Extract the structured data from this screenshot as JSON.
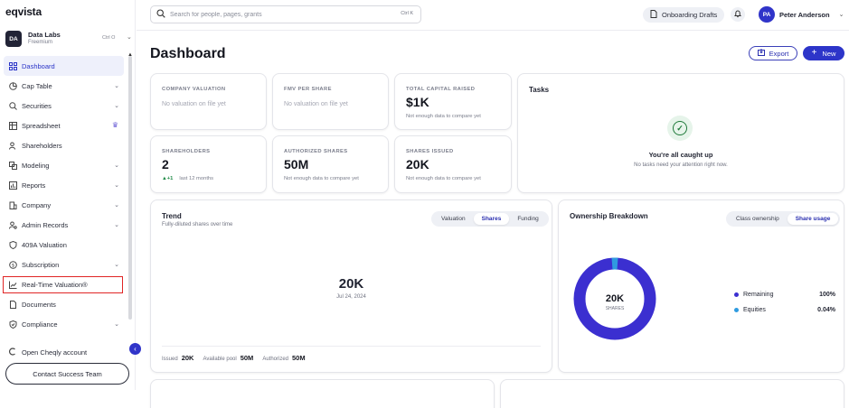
{
  "brand": {
    "logo": "eqvista"
  },
  "org": {
    "initials": "DA",
    "name": "Data Labs",
    "plan": "Freemium",
    "shortcut": "Ctrl O"
  },
  "sidebar": {
    "items": [
      {
        "label": "Dashboard",
        "icon": "grid-icon",
        "active": true
      },
      {
        "label": "Cap Table",
        "icon": "pie-icon",
        "chevron": true
      },
      {
        "label": "Securities",
        "icon": "search-dollar-icon",
        "chevron": true
      },
      {
        "label": "Spreadsheet",
        "icon": "table-icon",
        "crown": true
      },
      {
        "label": "Shareholders",
        "icon": "users-icon"
      },
      {
        "label": "Modeling",
        "icon": "model-icon",
        "chevron": true
      },
      {
        "label": "Reports",
        "icon": "report-icon",
        "chevron": true
      },
      {
        "label": "Company",
        "icon": "company-icon",
        "chevron": true
      },
      {
        "label": "Admin Records",
        "icon": "admin-icon",
        "chevron": true
      },
      {
        "label": "409A Valuation",
        "icon": "shield-icon"
      },
      {
        "label": "Subscription",
        "icon": "dollar-icon",
        "chevron": true
      },
      {
        "label": "Real-Time Valuation®",
        "icon": "trend-icon"
      },
      {
        "label": "Documents",
        "icon": "document-icon"
      },
      {
        "label": "Compliance",
        "icon": "shield-check-icon",
        "chevron": true
      }
    ],
    "cheqly": "Open Cheqly account",
    "contact": "Contact Success Team"
  },
  "topbar": {
    "search_placeholder": "Search for people, pages, grants",
    "search_shortcut": "Ctrl K",
    "drafts": "Onboarding Drafts",
    "user_initials": "PA",
    "user_name": "Peter Anderson"
  },
  "page": {
    "title": "Dashboard",
    "export": "Export",
    "new": "New"
  },
  "kpis": {
    "company_valuation": {
      "label": "COMPANY VALUATION",
      "empty": "No valuation on file yet"
    },
    "fmv": {
      "label": "FMV PER SHARE",
      "empty": "No valuation on file yet"
    },
    "capital": {
      "label": "TOTAL CAPITAL RAISED",
      "value": "$1K",
      "sub": "Not enough data to compare yet"
    },
    "shareholders": {
      "label": "SHAREHOLDERS",
      "value": "2",
      "delta": "+1",
      "sub": "last 12 months"
    },
    "authorized": {
      "label": "AUTHORIZED SHARES",
      "value": "50M",
      "sub": "Not enough data to compare yet"
    },
    "issued": {
      "label": "SHARES ISSUED",
      "value": "20K",
      "sub": "Not enough data to compare yet"
    }
  },
  "tasks": {
    "title": "Tasks",
    "caught_up": "You're all caught up",
    "sub": "No tasks need your attention right now."
  },
  "trend": {
    "title": "Trend",
    "subtitle": "Fully-diluted shares over time",
    "tabs": [
      "Valuation",
      "Shares",
      "Funding"
    ],
    "active_tab": "Shares",
    "value": "20K",
    "date": "Jul 24, 2024",
    "footer": [
      {
        "label": "Issued",
        "value": "20K"
      },
      {
        "label": "Available pool",
        "value": "50M"
      },
      {
        "label": "Authorized",
        "value": "50M"
      }
    ]
  },
  "ownership": {
    "title": "Ownership Breakdown",
    "tabs": [
      "Class ownership",
      "Share usage"
    ],
    "active_tab": "Share usage",
    "center_value": "20K",
    "center_label": "SHARES",
    "legend": [
      {
        "name": "Remaining",
        "pct": "100%",
        "color": "#3b2fd0"
      },
      {
        "name": "Equities",
        "pct": "0.04%",
        "color": "#2f9be0"
      }
    ]
  },
  "colors": {
    "accent": "#2d35c9",
    "highlight": "#e02525",
    "success": "#1f7a3a"
  }
}
